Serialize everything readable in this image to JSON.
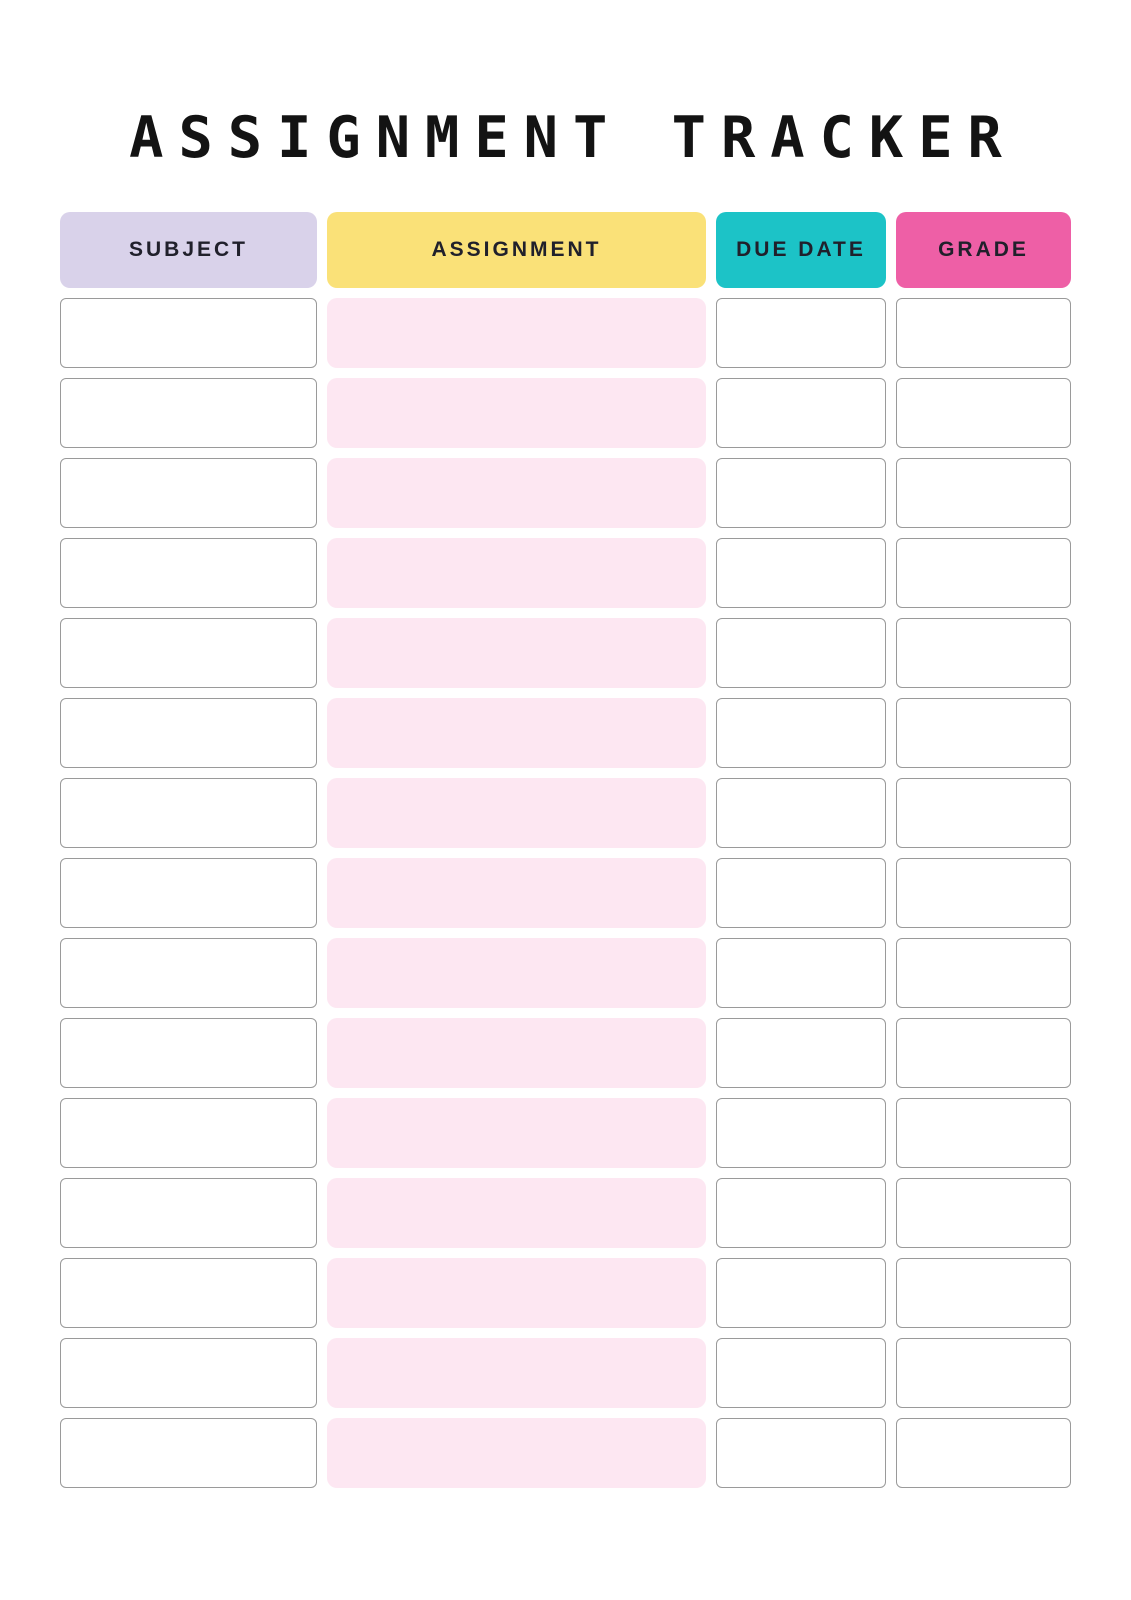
{
  "page": {
    "title": "ASSIGNMENT TRACKER",
    "background_color": "#ffffff",
    "title_color": "#131313"
  },
  "table": {
    "columns": [
      {
        "key": "subject",
        "label": "SUBJECT",
        "header_bg": "#d9d2ea"
      },
      {
        "key": "assignment",
        "label": "ASSIGNMENT",
        "header_bg": "#fae178"
      },
      {
        "key": "due_date",
        "label": "DUE DATE",
        "header_bg": "#1cc3c7"
      },
      {
        "key": "grade",
        "label": "GRADE",
        "header_bg": "#ee5fa6"
      }
    ],
    "header_text_color": "#20202b",
    "row_count": 15,
    "rows": [
      {
        "subject": "",
        "assignment": "",
        "due_date": "",
        "grade": ""
      },
      {
        "subject": "",
        "assignment": "",
        "due_date": "",
        "grade": ""
      },
      {
        "subject": "",
        "assignment": "",
        "due_date": "",
        "grade": ""
      },
      {
        "subject": "",
        "assignment": "",
        "due_date": "",
        "grade": ""
      },
      {
        "subject": "",
        "assignment": "",
        "due_date": "",
        "grade": ""
      },
      {
        "subject": "",
        "assignment": "",
        "due_date": "",
        "grade": ""
      },
      {
        "subject": "",
        "assignment": "",
        "due_date": "",
        "grade": ""
      },
      {
        "subject": "",
        "assignment": "",
        "due_date": "",
        "grade": ""
      },
      {
        "subject": "",
        "assignment": "",
        "due_date": "",
        "grade": ""
      },
      {
        "subject": "",
        "assignment": "",
        "due_date": "",
        "grade": ""
      },
      {
        "subject": "",
        "assignment": "",
        "due_date": "",
        "grade": ""
      },
      {
        "subject": "",
        "assignment": "",
        "due_date": "",
        "grade": ""
      },
      {
        "subject": "",
        "assignment": "",
        "due_date": "",
        "grade": ""
      },
      {
        "subject": "",
        "assignment": "",
        "due_date": "",
        "grade": ""
      },
      {
        "subject": "",
        "assignment": "",
        "due_date": "",
        "grade": ""
      }
    ],
    "cell_styles": {
      "assignment_cell_bg": "#fde7f2",
      "empty_cell_bg": "#ffffff",
      "empty_cell_border": "#9a9a9a"
    }
  }
}
